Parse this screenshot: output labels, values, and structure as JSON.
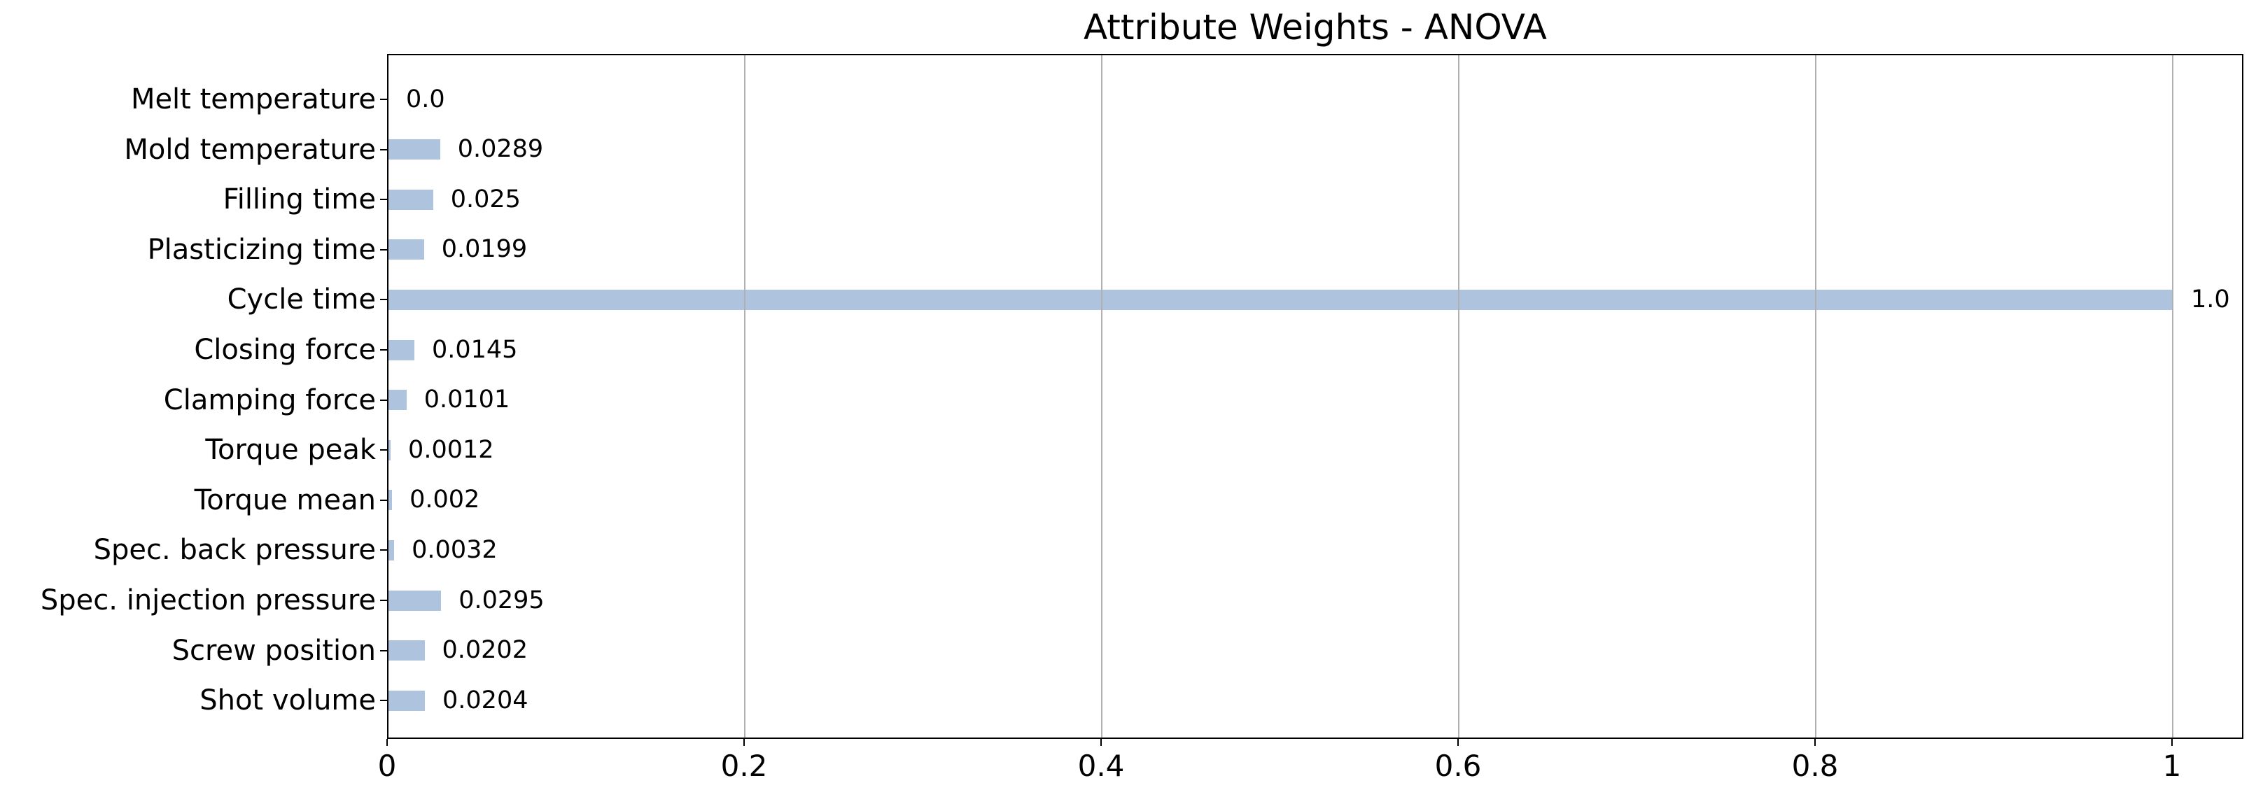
{
  "chart_data": {
    "type": "bar",
    "orientation": "horizontal",
    "title": "Attribute Weights - ANOVA",
    "categories": [
      "Melt temperature",
      "Mold temperature",
      "Filling time",
      "Plasticizing time",
      "Cycle time",
      "Closing force",
      "Clamping force",
      "Torque peak",
      "Torque mean",
      "Spec. back pressure",
      "Spec. injection pressure",
      "Screw position",
      "Shot volume"
    ],
    "values": [
      0.0,
      0.0289,
      0.025,
      0.0199,
      1.0,
      0.0145,
      0.0101,
      0.0012,
      0.002,
      0.0032,
      0.0295,
      0.0202,
      0.0204
    ],
    "value_labels": [
      "0.0",
      "0.0289",
      "0.025",
      "0.0199",
      "1.0",
      "0.0145",
      "0.0101",
      "0.0012",
      "0.002",
      "0.0032",
      "0.0295",
      "0.0202",
      "0.0204"
    ],
    "x_ticks": [
      0,
      0.2,
      0.4,
      0.6,
      0.8,
      1.0
    ],
    "x_tick_labels": [
      "0",
      "0.2",
      "0.4",
      "0.6",
      "0.8",
      "1"
    ],
    "xlim": [
      0,
      1.04
    ],
    "xlabel": "",
    "ylabel": "",
    "grid": "vertical-only",
    "grid_above_bars": true,
    "legend": "none",
    "colors": {
      "bar": "#aec4de",
      "grid": "#b0b0b0",
      "spine": "#000000",
      "text": "#000000",
      "background": "#ffffff"
    }
  }
}
